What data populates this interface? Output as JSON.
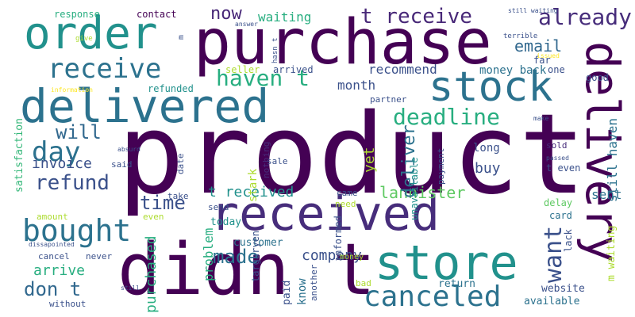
{
  "words": [
    "product",
    "purchase",
    "received",
    "didn t",
    "delivered",
    "store",
    "order",
    "delivery",
    "stock",
    "bought",
    "receive",
    "canceled",
    "day",
    "already",
    "haven t",
    "deadline",
    "t receive",
    "want",
    "refund",
    "now",
    "made",
    "will",
    "don t",
    "arrive",
    "lannister",
    "email",
    "company",
    "time",
    "invoice",
    "t received",
    "recommend",
    "deliver",
    "month",
    "problem",
    "sent",
    "buy",
    "purchased",
    "yet",
    "waiting",
    "still haven",
    "today",
    "customer",
    "satisfaction",
    "money back",
    "know",
    "paid",
    "stark",
    "long",
    "m waiting",
    "website",
    "available",
    "return",
    "lack",
    "card",
    "targaryen",
    "contact",
    "response",
    "refunded",
    "seller",
    "arrived",
    "good",
    "far",
    "one",
    "partner",
    "sold",
    "t even",
    "delay",
    "informed",
    "nothing",
    "sale",
    "send",
    "unavailable",
    "take",
    "came",
    "need",
    "even",
    "date",
    "said",
    "payment",
    "information",
    "cancel",
    "never",
    "amount",
    "without",
    "money",
    "bad",
    "another",
    "terrible",
    "issued",
    "still waiting",
    "give",
    "answer",
    "hasn t",
    "m",
    "make",
    "absurd",
    "still",
    "dissapointed",
    "passed"
  ]
}
